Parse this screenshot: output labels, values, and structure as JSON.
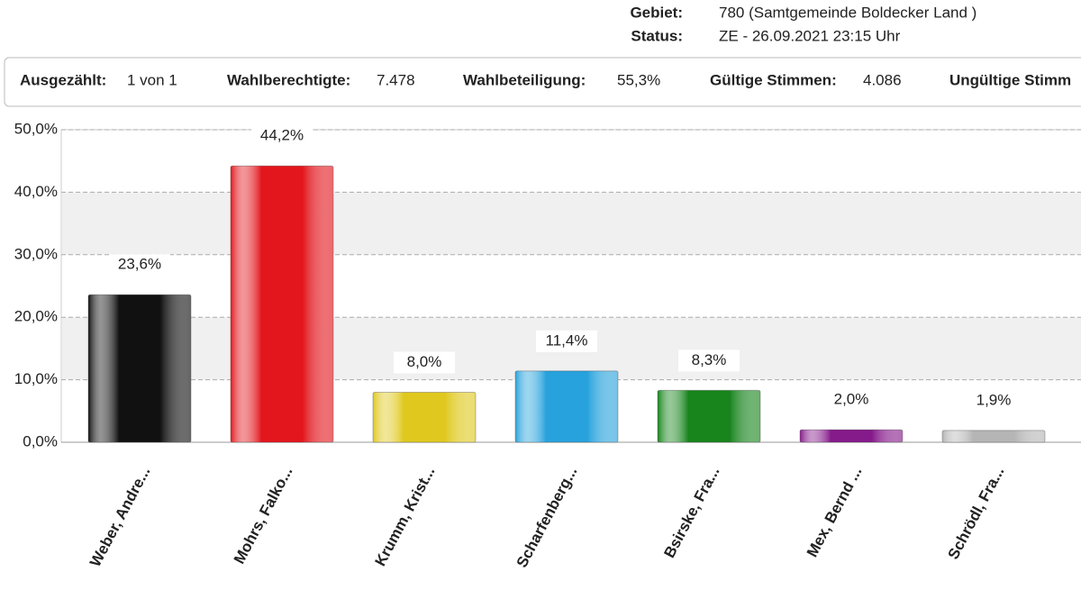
{
  "header": {
    "rows": [
      {
        "label": "Gebiet:",
        "value": "780 (Samtgemeinde Boldecker Land )"
      },
      {
        "label": "Status:",
        "value": "ZE - 26.09.2021 23:15 Uhr"
      }
    ]
  },
  "summary": [
    {
      "label": "Ausgezählt:",
      "value": "1 von 1"
    },
    {
      "label": "Wahlberechtigte:",
      "value": "7.478"
    },
    {
      "label": "Wahlbeteiligung:",
      "value": "55,3%"
    },
    {
      "label": "Gültige Stimmen:",
      "value": "4.086"
    },
    {
      "label": "Ungültige Stimm"
    }
  ],
  "chart_data": {
    "type": "bar",
    "categories": [
      "Weber, Andre...",
      "Mohrs, Falko...",
      "Krumm, Krist...",
      "Scharfenberg...",
      "Bsirske, Fra...",
      "Mex, Bernd ...",
      "Schrödl, Fra..."
    ],
    "values": [
      23.6,
      44.2,
      8.0,
      11.4,
      8.3,
      2.0,
      1.9
    ],
    "value_labels": [
      "23,6%",
      "44,2%",
      "8,0%",
      "11,4%",
      "8,3%",
      "2,0%",
      "1,9%"
    ],
    "colors": [
      "#111111",
      "#e2161c",
      "#e0c81e",
      "#27a2dc",
      "#17841c",
      "#851a8a",
      "#b5b5b5"
    ],
    "ylim": [
      0,
      50
    ],
    "yticks": [
      {
        "value": 0,
        "label": "0,0%"
      },
      {
        "value": 10,
        "label": "10,0%"
      },
      {
        "value": 20,
        "label": "20,0%"
      },
      {
        "value": 30,
        "label": "30,0%"
      },
      {
        "value": 40,
        "label": "40,0%"
      },
      {
        "value": 50,
        "label": "50,0%"
      }
    ],
    "grid": true
  }
}
